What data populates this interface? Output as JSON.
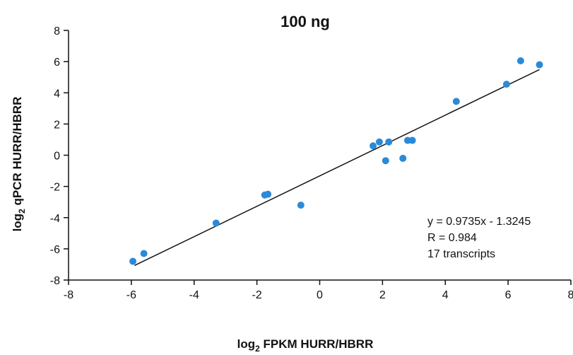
{
  "chart_data": {
    "type": "scatter",
    "title": "100 ng",
    "xlabel": {
      "prefix": "log",
      "sub": "2",
      "text": " FPKM HURR/HBRR"
    },
    "ylabel": {
      "prefix": "log",
      "sub": "2",
      "text": " qPCR HURR/HBRR"
    },
    "xlim": [
      -8,
      8
    ],
    "ylim": [
      -8,
      8
    ],
    "xticks": [
      -8,
      -6,
      -4,
      -2,
      0,
      2,
      4,
      6,
      8
    ],
    "yticks": [
      -8,
      -6,
      -4,
      -2,
      0,
      2,
      4,
      6,
      8
    ],
    "grid": false,
    "marker_color": "#2b8ad8",
    "line_color": "#111111",
    "points": [
      {
        "x": -5.95,
        "y": -6.8
      },
      {
        "x": -5.6,
        "y": -6.3
      },
      {
        "x": -3.3,
        "y": -4.35
      },
      {
        "x": -1.75,
        "y": -2.55
      },
      {
        "x": -1.65,
        "y": -2.5
      },
      {
        "x": -0.6,
        "y": -3.2
      },
      {
        "x": 1.7,
        "y": 0.6
      },
      {
        "x": 1.9,
        "y": 0.85
      },
      {
        "x": 2.1,
        "y": -0.35
      },
      {
        "x": 2.2,
        "y": 0.85
      },
      {
        "x": 2.65,
        "y": -0.2
      },
      {
        "x": 2.8,
        "y": 0.95
      },
      {
        "x": 2.95,
        "y": 0.95
      },
      {
        "x": 4.35,
        "y": 3.45
      },
      {
        "x": 5.95,
        "y": 4.55
      },
      {
        "x": 6.4,
        "y": 6.05
      },
      {
        "x": 7.0,
        "y": 5.8
      }
    ],
    "fit_line": {
      "slope": 0.9735,
      "intercept": -1.3245,
      "x_range": [
        -5.9,
        7.0
      ]
    },
    "annotations": [
      "y = 0.9735x - 1.3245",
      "R = 0.984",
      "17 transcripts"
    ]
  }
}
